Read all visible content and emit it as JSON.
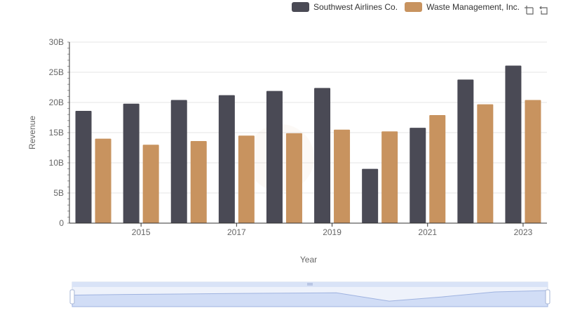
{
  "legend": {
    "items": [
      {
        "label": "Southwest Airlines Co.",
        "color": "#4a4a55"
      },
      {
        "label": "Waste Management, Inc.",
        "color": "#c8935f"
      }
    ]
  },
  "toolbox": {
    "icons": [
      "zoom-icon",
      "zoom-reset-icon"
    ]
  },
  "chart_data": {
    "type": "bar",
    "x": [
      2014,
      2015,
      2016,
      2017,
      2018,
      2019,
      2020,
      2021,
      2022,
      2023
    ],
    "x_tick_labels": [
      "2015",
      "2017",
      "2019",
      "2021",
      "2023"
    ],
    "y_tick_labels": [
      "0",
      "5B",
      "10B",
      "15B",
      "20B",
      "25B",
      "30B"
    ],
    "xlabel": "Year",
    "ylabel": "Revenue",
    "ylim": [
      0,
      30000000000
    ],
    "grid": true,
    "legend_position": "top-right",
    "series": [
      {
        "name": "Southwest Airlines Co.",
        "color": "#4a4a55",
        "values": [
          18600000000,
          19800000000,
          20400000000,
          21200000000,
          21900000000,
          22400000000,
          9000000000,
          15800000000,
          23800000000,
          26100000000
        ]
      },
      {
        "name": "Waste Management, Inc.",
        "color": "#c8935f",
        "values": [
          14000000000,
          13000000000,
          13600000000,
          14500000000,
          14900000000,
          15500000000,
          15200000000,
          17900000000,
          19700000000,
          20400000000
        ]
      }
    ]
  }
}
